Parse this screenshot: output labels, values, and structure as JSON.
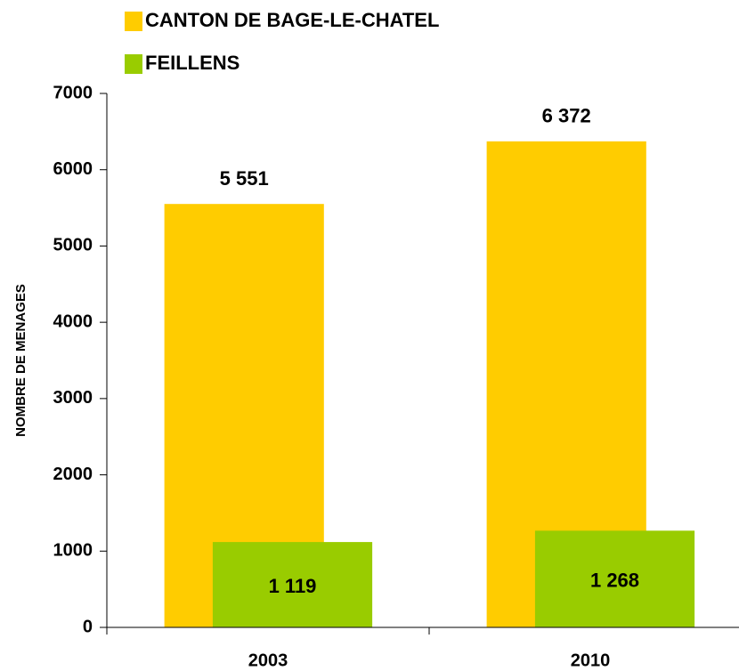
{
  "chart_data": {
    "type": "bar",
    "y_label": "NOMBRE DE MENAGES",
    "categories": [
      "2003",
      "2010"
    ],
    "series": [
      {
        "name": "CANTON DE BAGE-LE-CHATEL",
        "color": "#ffcc00",
        "values": [
          5551,
          6372
        ],
        "value_labels": [
          "5 551",
          "6 372"
        ]
      },
      {
        "name": "FEILLENS",
        "color": "#99cc00",
        "values": [
          1119,
          1268
        ],
        "value_labels": [
          "1 119",
          "1 268"
        ]
      }
    ],
    "ylim": [
      0,
      7000
    ],
    "yticks": [
      0,
      1000,
      2000,
      3000,
      4000,
      5000,
      6000,
      7000
    ],
    "legend": "top-left"
  }
}
